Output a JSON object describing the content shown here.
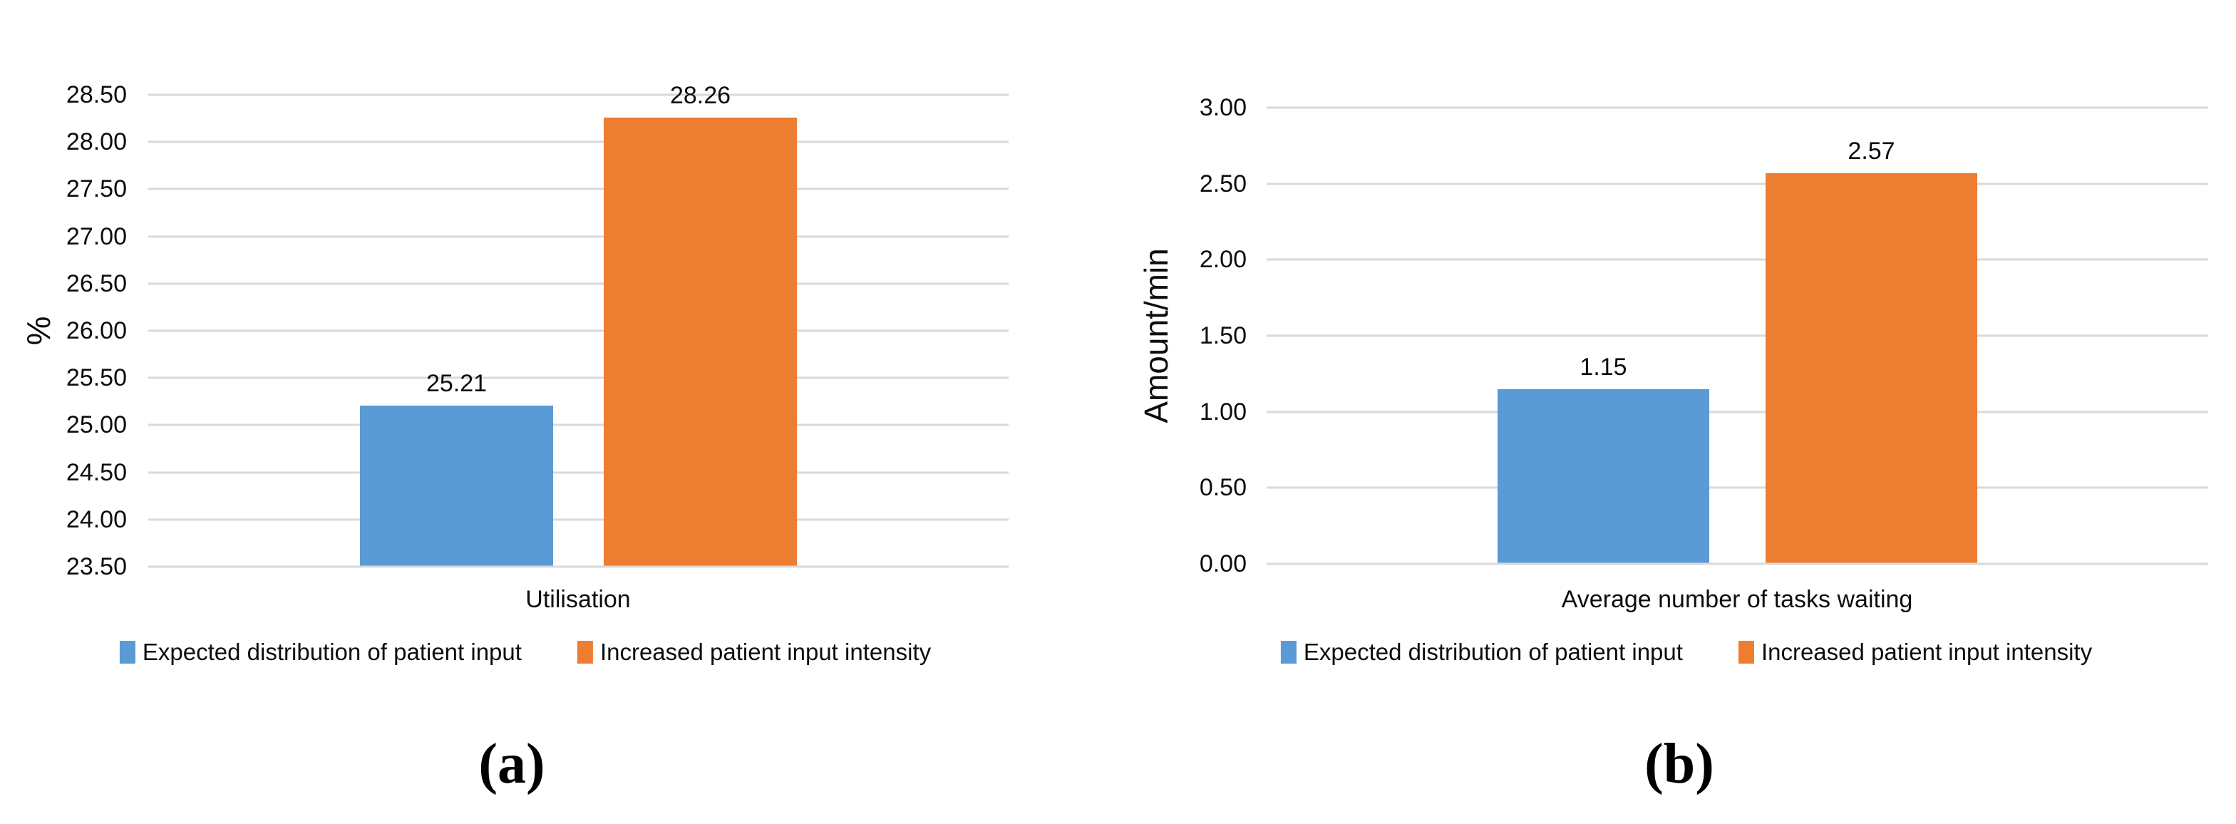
{
  "figure": {
    "background": "#FFFFFF",
    "panels": [
      {
        "caption": "(a)"
      },
      {
        "caption": "(b)"
      }
    ]
  },
  "chart_data": [
    {
      "type": "bar",
      "title": "",
      "xlabel": "",
      "ylabel": "%",
      "categories": [
        "Utilisation"
      ],
      "ylim": [
        23.5,
        28.5
      ],
      "ytick_step": 0.5,
      "yticks": [
        "28.50",
        "28.00",
        "27.50",
        "27.00",
        "26.50",
        "26.00",
        "25.50",
        "25.00",
        "24.50",
        "24.00",
        "23.50"
      ],
      "grid": true,
      "gridline_color": "#D9D9D9",
      "legend_position": "bottom",
      "series": [
        {
          "key": "expected-distribution",
          "name": "Expected distribution of patient input",
          "values": [
            25.21
          ],
          "labels": [
            "25.21"
          ],
          "color": "#5B9BD5"
        },
        {
          "key": "increased-intensity",
          "name": "Increased patient input intensity",
          "values": [
            28.26
          ],
          "labels": [
            "28.26"
          ],
          "color": "#ED7D31"
        }
      ]
    },
    {
      "type": "bar",
      "title": "",
      "xlabel": "",
      "ylabel": "Amount/min",
      "categories": [
        "Average number of tasks waiting"
      ],
      "ylim": [
        0,
        3
      ],
      "ytick_step": 0.5,
      "yticks": [
        "3.00",
        "2.50",
        "2.00",
        "1.50",
        "1.00",
        "0.50",
        "0.00"
      ],
      "grid": true,
      "gridline_color": "#D9D9D9",
      "legend_position": "bottom",
      "series": [
        {
          "key": "expected-distribution",
          "name": "Expected distribution of patient input",
          "values": [
            1.15
          ],
          "labels": [
            "1.15"
          ],
          "color": "#5B9BD5"
        },
        {
          "key": "increased-intensity",
          "name": "Increased patient input intensity",
          "values": [
            2.57
          ],
          "labels": [
            "2.57"
          ],
          "color": "#ED7D31"
        }
      ]
    }
  ]
}
